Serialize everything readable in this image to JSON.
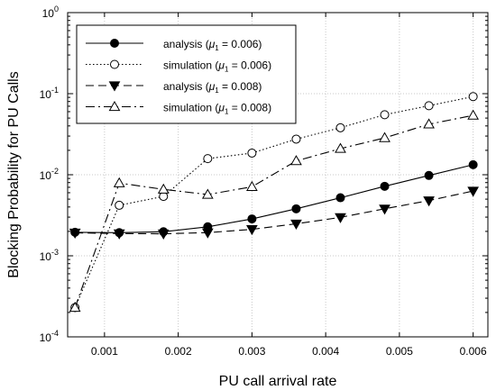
{
  "chart_data": {
    "type": "line",
    "title": "",
    "xlabel": "PU call arrival rate",
    "ylabel": "Blocking Probability for PU Calls",
    "xlim": [
      0.0005,
      0.0062
    ],
    "ylim": [
      0.0001,
      1
    ],
    "yscale": "log",
    "grid": true,
    "legend_position": "top-left",
    "x_ticks": [
      0.001,
      0.002,
      0.003,
      0.004,
      0.005,
      0.006
    ],
    "x_tick_labels": [
      "0.001",
      "0.002",
      "0.003",
      "0.004",
      "0.005",
      "0.006"
    ],
    "y_ticks": [
      {
        "value": 0.0001,
        "base": "10",
        "exp": "-4"
      },
      {
        "value": 0.001,
        "base": "10",
        "exp": "-3"
      },
      {
        "value": 0.01,
        "base": "10",
        "exp": "-2"
      },
      {
        "value": 0.1,
        "base": "10",
        "exp": "-1"
      },
      {
        "value": 1,
        "base": "10",
        "exp": "0"
      }
    ],
    "x": [
      0.0006,
      0.0012,
      0.0018,
      0.0024,
      0.003,
      0.0036,
      0.0042,
      0.0048,
      0.0054,
      0.006
    ],
    "series": [
      {
        "legend_prefix": "analysis (",
        "legend_mu": "μ",
        "legend_sub": "1",
        "legend_suffix": " = 0.006)",
        "marker": "circle-filled",
        "dash": "solid",
        "values": [
          0.00195,
          0.00193,
          0.00198,
          0.00228,
          0.00285,
          0.0038,
          0.0052,
          0.0072,
          0.0098,
          0.0133
        ]
      },
      {
        "legend_prefix": "simulation (",
        "legend_mu": "μ",
        "legend_sub": "1",
        "legend_suffix": " = 0.006)",
        "marker": "circle-open",
        "dash": "dotted",
        "values": [
          0.00023,
          0.0042,
          0.0054,
          0.0158,
          0.0185,
          0.0275,
          0.038,
          0.055,
          0.071,
          0.092
        ]
      },
      {
        "legend_prefix": "analysis (",
        "legend_mu": "μ",
        "legend_sub": "1",
        "legend_suffix": " = 0.008)",
        "marker": "triangle-down-filled",
        "dash": "dashed",
        "values": [
          0.00192,
          0.00188,
          0.00187,
          0.00193,
          0.00212,
          0.00248,
          0.00298,
          0.0038,
          0.0048,
          0.0063
        ]
      },
      {
        "legend_prefix": "simulation (",
        "legend_mu": "μ",
        "legend_sub": "1",
        "legend_suffix": " = 0.008)",
        "marker": "triangle-up-open",
        "dash": "dashdot",
        "values": [
          0.00023,
          0.0079,
          0.0066,
          0.0057,
          0.0071,
          0.0148,
          0.021,
          0.0285,
          0.042,
          0.054
        ]
      }
    ]
  }
}
